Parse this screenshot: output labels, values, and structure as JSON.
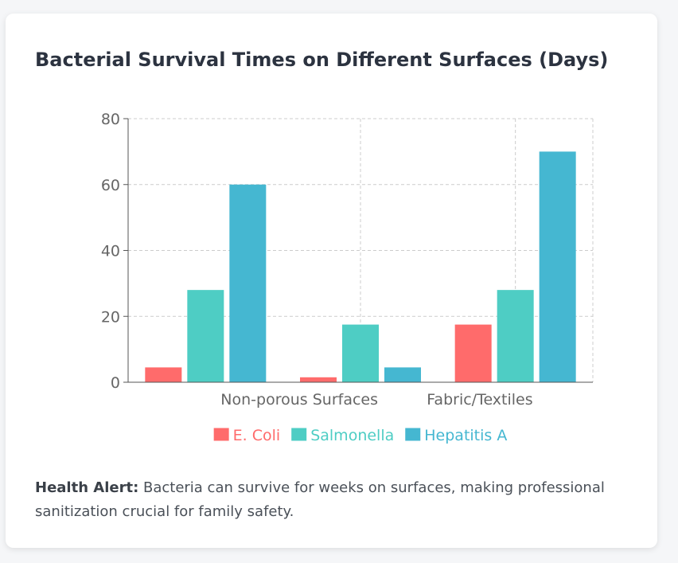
{
  "card": {
    "title": "Bacterial Survival Times on Different Surfaces (Days)",
    "note_label": "Health Alert:",
    "note_text": " Bacteria can survive for weeks on surfaces, making professional sanitization crucial for family safety."
  },
  "chart_data": {
    "type": "bar",
    "title": "Bacterial Survival Times on Different Surfaces (Days)",
    "categories": [
      "",
      "Non-porous Surfaces",
      "Fabric/Textiles"
    ],
    "series": [
      {
        "name": "E. Coli",
        "values": [
          4.5,
          1.5,
          17.5
        ],
        "color": "#ff6b6b"
      },
      {
        "name": "Salmonella",
        "values": [
          28,
          17.5,
          28
        ],
        "color": "#4ecdc4"
      },
      {
        "name": "Hepatitis A",
        "values": [
          60,
          4.5,
          70
        ],
        "color": "#45b7d1"
      }
    ],
    "ylim": [
      0,
      80
    ],
    "yticks": [
      0,
      20,
      40,
      60,
      80
    ],
    "xlabel": "",
    "ylabel": "",
    "grid": true,
    "legend_position": "bottom"
  }
}
